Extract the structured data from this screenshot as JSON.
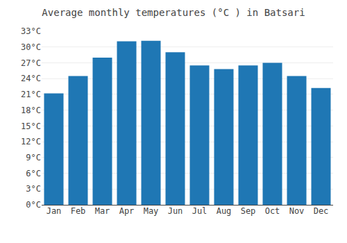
{
  "chart_data": {
    "type": "bar",
    "title": "Average monthly temperatures (°C ) in Batsari",
    "categories": [
      "Jan",
      "Feb",
      "Mar",
      "Apr",
      "May",
      "Jun",
      "Jul",
      "Aug",
      "Sep",
      "Oct",
      "Nov",
      "Dec"
    ],
    "values": [
      21.2,
      24.5,
      28.0,
      31.1,
      31.2,
      29.0,
      26.5,
      25.8,
      26.5,
      27.0,
      24.5,
      22.2
    ],
    "ylim": [
      0,
      33
    ],
    "yticks": [
      {
        "value": 0,
        "label": "0°C"
      },
      {
        "value": 3,
        "label": "3°C"
      },
      {
        "value": 6,
        "label": "6°C"
      },
      {
        "value": 9,
        "label": "9°C"
      },
      {
        "value": 12,
        "label": "12°C"
      },
      {
        "value": 15,
        "label": "15°C"
      },
      {
        "value": 18,
        "label": "18°C"
      },
      {
        "value": 21,
        "label": "21°C"
      },
      {
        "value": 24,
        "label": "24°C"
      },
      {
        "value": 27,
        "label": "27°C"
      },
      {
        "value": 30,
        "label": "30°C"
      },
      {
        "value": 33,
        "label": "33°C"
      }
    ],
    "grid": true
  }
}
